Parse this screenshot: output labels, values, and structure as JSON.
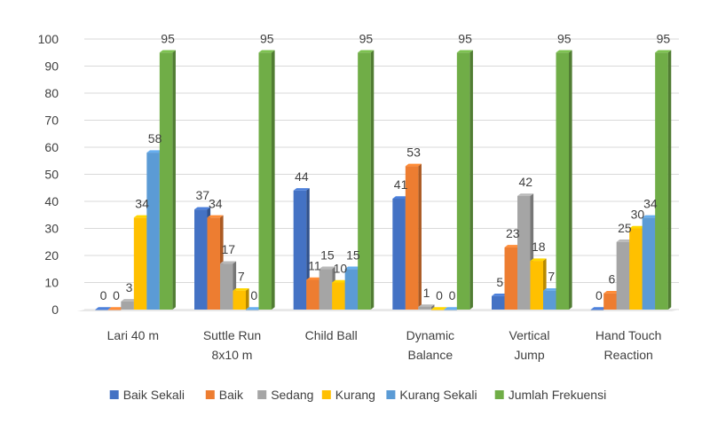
{
  "chart_data": {
    "type": "bar",
    "title": "",
    "xlabel": "",
    "ylabel": "",
    "ylim": [
      0,
      100
    ],
    "yticks": [
      0,
      10,
      20,
      30,
      40,
      50,
      60,
      70,
      80,
      90,
      100
    ],
    "grid": true,
    "legend_position": "bottom",
    "categories": [
      [
        "Lari 40 m"
      ],
      [
        "Suttle Run",
        "8x10 m"
      ],
      [
        "Child Ball"
      ],
      [
        "Dynamic",
        "Balance"
      ],
      [
        "Vertical",
        "Jump"
      ],
      [
        "Hand Touch",
        "Reaction"
      ]
    ],
    "series": [
      {
        "name": "Baik Sekali",
        "color": "#4472C4",
        "values": [
          0,
          37,
          44,
          41,
          5,
          0
        ]
      },
      {
        "name": "Baik",
        "color": "#ED7D31",
        "values": [
          0,
          34,
          11,
          53,
          23,
          6
        ]
      },
      {
        "name": "Sedang",
        "color": "#A5A5A5",
        "values": [
          3,
          17,
          15,
          1,
          42,
          25
        ]
      },
      {
        "name": "Kurang",
        "color": "#FFC000",
        "values": [
          34,
          7,
          10,
          0,
          18,
          30
        ]
      },
      {
        "name": "Kurang Sekali",
        "color": "#5B9BD5",
        "values": [
          58,
          0,
          15,
          0,
          7,
          34
        ]
      },
      {
        "name": "Jumlah Frekuensi",
        "color": "#70AD47",
        "values": [
          95,
          95,
          95,
          95,
          95,
          95
        ]
      }
    ]
  }
}
